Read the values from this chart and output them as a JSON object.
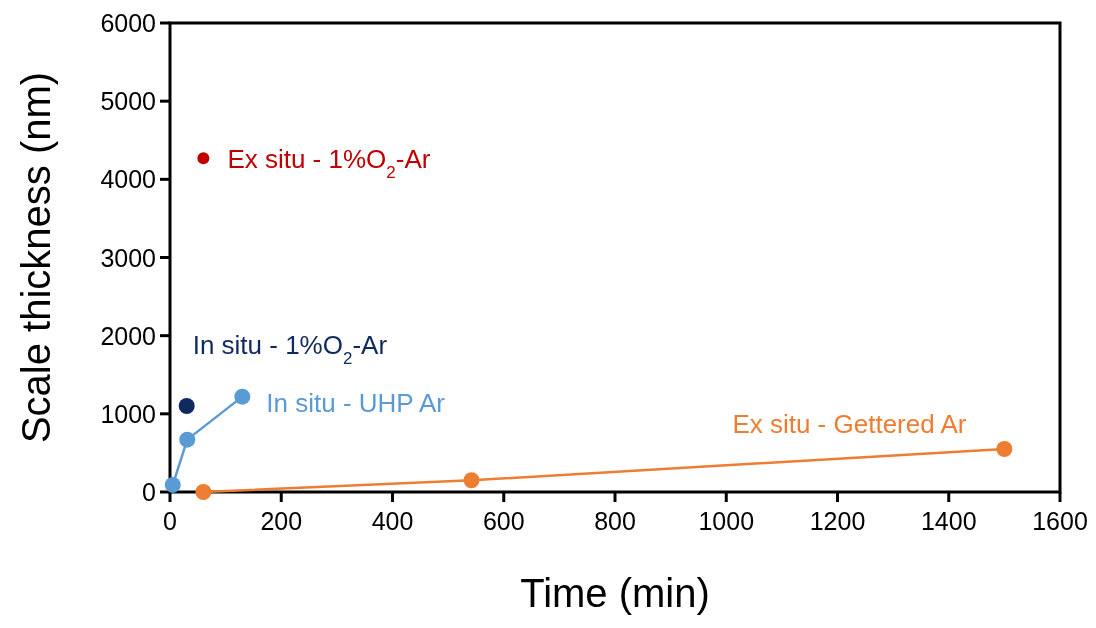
{
  "chart_data": {
    "type": "line",
    "xlabel": "Time (min)",
    "ylabel": "Scale thickness (nm)",
    "xlim": [
      0,
      1600
    ],
    "xticks": [
      0,
      200,
      400,
      600,
      800,
      1000,
      1200,
      1400,
      1600
    ],
    "ylim": [
      0,
      6000
    ],
    "yticks": [
      0,
      1000,
      2000,
      3000,
      4000,
      5000,
      6000
    ],
    "grid": false,
    "marker": "circle",
    "series": [
      {
        "name": "Ex situ - 1%O$_{2}$-Ar",
        "type": "scatter",
        "color": "#c00000",
        "x": [
          60
        ],
        "values": [
          4270
        ]
      },
      {
        "name": "In situ - 1%O$_{2}$-Ar",
        "type": "scatter",
        "color": "#0e2a5e",
        "x": [
          30
        ],
        "values": [
          1100
        ]
      },
      {
        "name": "In situ - UHP Ar",
        "color": "#5b9bd5",
        "x": [
          5,
          31,
          130
        ],
        "values": [
          90,
          670,
          1220
        ]
      },
      {
        "name": "Ex situ - Gettered Ar",
        "color": "#ed7d31",
        "x": [
          60,
          542,
          1500
        ],
        "values": [
          0,
          150,
          550
        ]
      }
    ]
  }
}
